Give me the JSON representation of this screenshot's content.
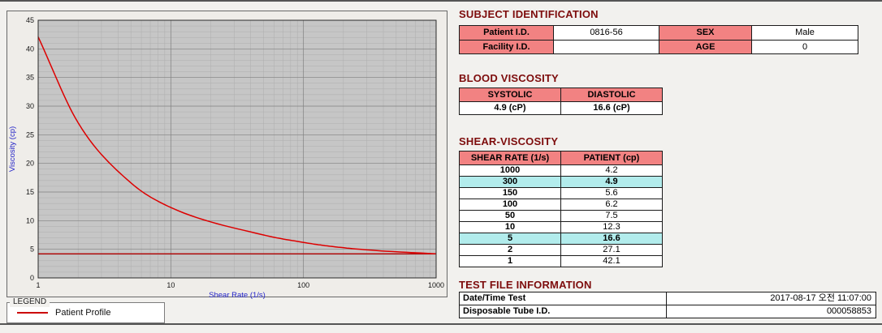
{
  "subject_identification": {
    "title": "SUBJECT IDENTIFICATION",
    "rows": [
      {
        "label1": "Patient I.D.",
        "value1": "0816-56",
        "label2": "SEX",
        "value2": "Male"
      },
      {
        "label1": "Facility I.D.",
        "value1": "",
        "label2": "AGE",
        "value2": "0"
      }
    ]
  },
  "blood_viscosity": {
    "title": "BLOOD VISCOSITY",
    "headers": [
      "SYSTOLIC",
      "DIASTOLIC"
    ],
    "values": [
      "4.9 (cP)",
      "16.6 (cP)"
    ]
  },
  "shear_viscosity": {
    "title": "SHEAR-VISCOSITY",
    "headers": [
      "SHEAR RATE (1/s)",
      "PATIENT (cp)"
    ],
    "rows": [
      {
        "rate": "1000",
        "value": "4.2",
        "highlight": false
      },
      {
        "rate": "300",
        "value": "4.9",
        "highlight": true
      },
      {
        "rate": "150",
        "value": "5.6",
        "highlight": false
      },
      {
        "rate": "100",
        "value": "6.2",
        "highlight": false
      },
      {
        "rate": "50",
        "value": "7.5",
        "highlight": false
      },
      {
        "rate": "10",
        "value": "12.3",
        "highlight": false
      },
      {
        "rate": "5",
        "value": "16.6",
        "highlight": true
      },
      {
        "rate": "2",
        "value": "27.1",
        "highlight": false
      },
      {
        "rate": "1",
        "value": "42.1",
        "highlight": false
      }
    ]
  },
  "test_file": {
    "title": "TEST FILE INFORMATION",
    "rows": [
      {
        "label": "Date/Time Test",
        "value": "2017-08-17  오전 11:07:00"
      },
      {
        "label": "Disposable Tube I.D.",
        "value": "000058853"
      }
    ]
  },
  "legend": {
    "box_label": "LEGEND",
    "series_label": "Patient Profile",
    "line_color": "#cc0000"
  },
  "colors": {
    "table_header": "#f28282",
    "row_highlight": "#b2ecec",
    "section_title": "#7d0c0c"
  },
  "chart_data": {
    "type": "line",
    "title": "",
    "xlabel": "Shear Rate (1/s)",
    "ylabel": "Viscosity (cp)",
    "x_scale": "log",
    "xlim": [
      1,
      1000
    ],
    "ylim": [
      0,
      45
    ],
    "x_ticks": [
      1,
      10,
      100,
      1000
    ],
    "y_ticks": [
      0,
      5,
      10,
      15,
      20,
      25,
      30,
      35,
      40,
      45
    ],
    "grid": true,
    "legend_position": "external-bottom-left",
    "x": [
      1,
      2,
      5,
      10,
      50,
      100,
      150,
      300,
      1000
    ],
    "series": [
      {
        "name": "Patient Profile",
        "values": [
          42.1,
          27.1,
          16.6,
          12.3,
          7.5,
          6.2,
          5.6,
          4.9,
          4.2
        ]
      }
    ],
    "reference_line_y": 4.2,
    "plot_bg": "#c6c6c6",
    "grid_minor": "#aeaeae",
    "grid_major": "#808080",
    "line_color": "#dd0000",
    "ref_color": "#b00000"
  }
}
